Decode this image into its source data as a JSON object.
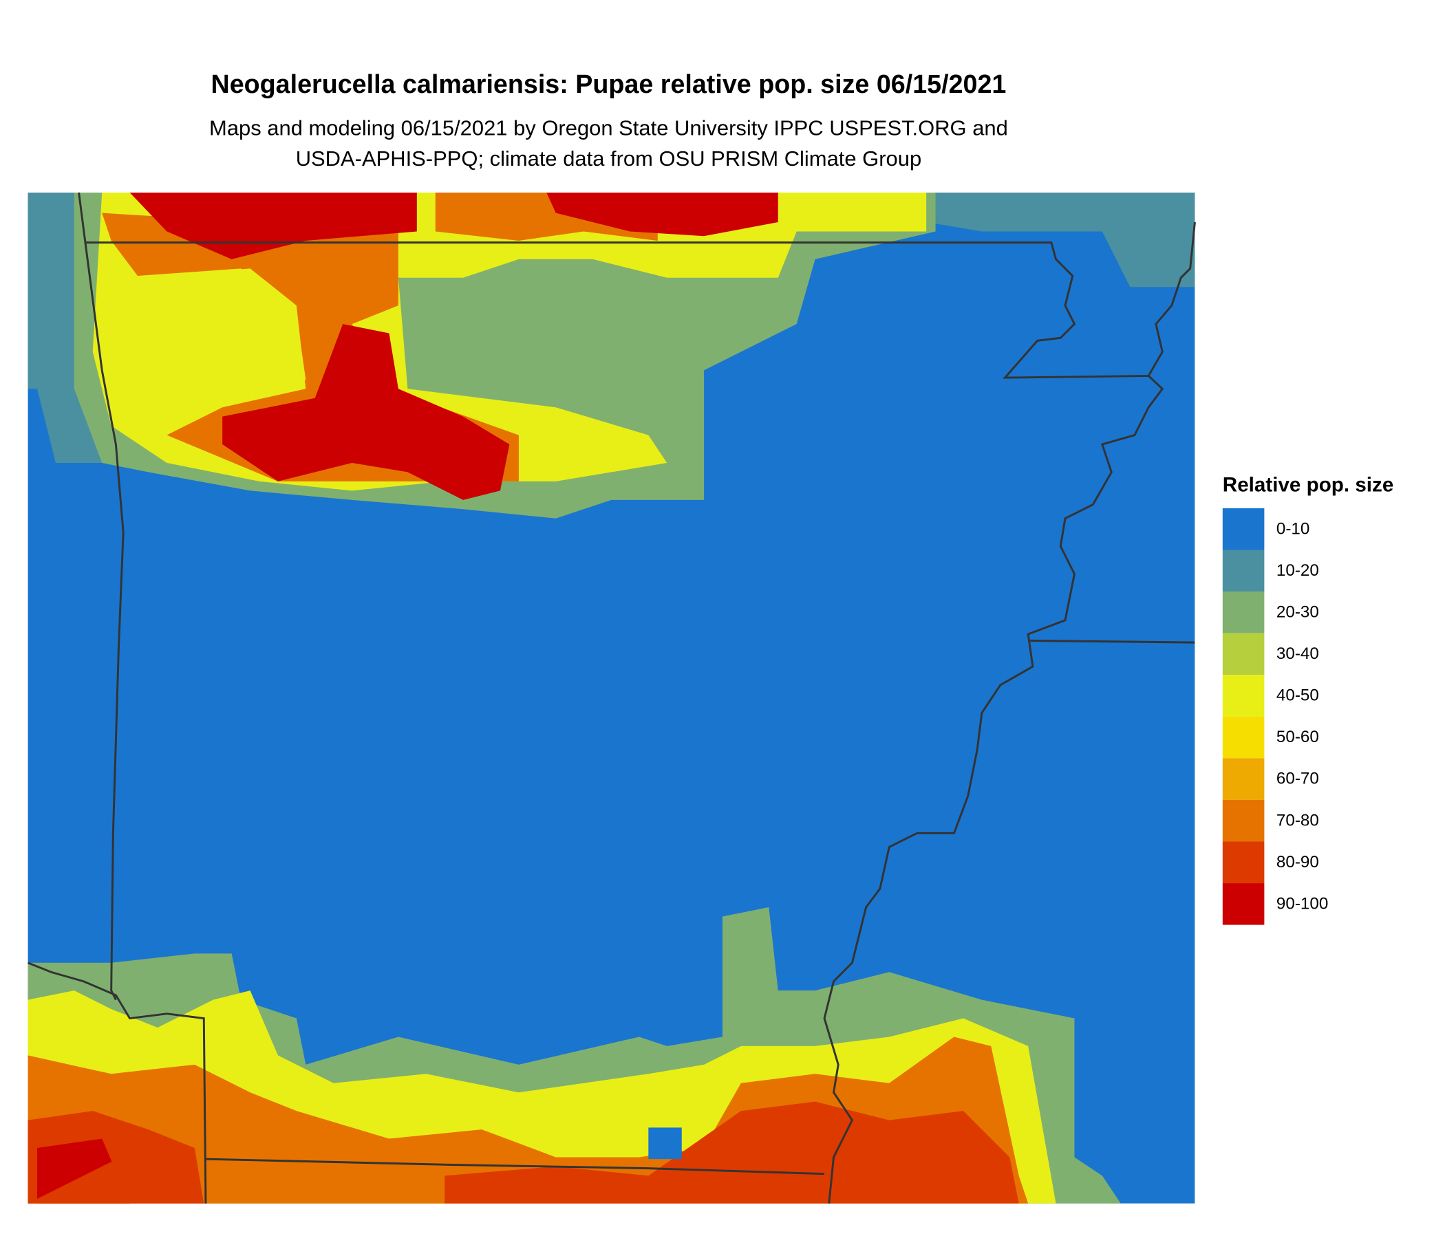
{
  "header": {
    "title": "Neogalerucella calmariensis: Pupae relative pop. size 06/15/2021",
    "subtitle_lines": [
      "Maps and modeling 06/15/2021 by Oregon State University IPPC USPEST.ORG and",
      "USDA-APHIS-PPQ; climate data from OSU PRISM Climate Group"
    ]
  },
  "legend": {
    "title": "Relative pop. size",
    "items": [
      {
        "label": "0-10",
        "color": "#1a75cf"
      },
      {
        "label": "10-20",
        "color": "#4a90a0"
      },
      {
        "label": "20-30",
        "color": "#80b070"
      },
      {
        "label": "30-40",
        "color": "#b5d03c"
      },
      {
        "label": "40-50",
        "color": "#e8ef16"
      },
      {
        "label": "50-60",
        "color": "#f5de00"
      },
      {
        "label": "60-70",
        "color": "#eeaa00"
      },
      {
        "label": "70-80",
        "color": "#e67300"
      },
      {
        "label": "80-90",
        "color": "#dd3a00"
      },
      {
        "label": "90-100",
        "color": "#cc0000"
      }
    ]
  }
}
